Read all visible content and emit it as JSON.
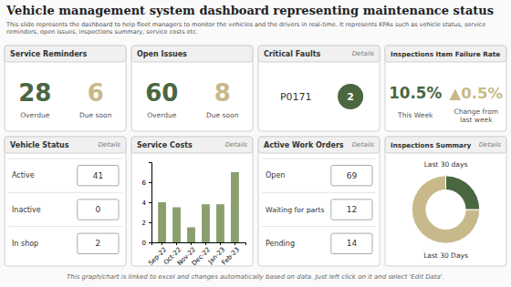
{
  "chart_data": [
    {
      "type": "dashboard",
      "title": "Vehicle management system dashboard representing maintenance status",
      "subtitle": "This slide represents the dashboard to help fleet managers to monitor the vehicles and the drivers in real-time. It represents KPAs such as vehicle status, service reminders, open issues, inspections summary, service costs etc.",
      "annotations": [
        "This graph/chart is linked to excel and changes automatically based on data. Just left click on it and select 'Edit Data'."
      ]
    },
    {
      "type": "kpi",
      "title": "Service Reminders",
      "categories": [
        "Overdue",
        "Due soon"
      ],
      "values": [
        28,
        6
      ],
      "colors": [
        "#4a6741",
        "#c8b98a"
      ]
    },
    {
      "type": "kpi",
      "title": "Open Issues",
      "categories": [
        "Overdue",
        "Due soon"
      ],
      "values": [
        60,
        8
      ],
      "colors": [
        "#4a6741",
        "#c8b98a"
      ]
    },
    {
      "type": "badge",
      "title": "Critical Faults",
      "categories": [
        "P0171"
      ],
      "values": [
        2
      ],
      "colors": [
        "#4a6741"
      ],
      "annotations": [
        "Details"
      ]
    },
    {
      "type": "kpi",
      "title": "Inspections Item Failure Rate",
      "categories": [
        "This Week",
        "Change from\nlast week"
      ],
      "values": [
        10.5,
        0.5
      ],
      "value_labels": [
        "10.5%",
        "▲0.5%"
      ],
      "colors": [
        "#4a6741",
        "#c8b98a"
      ]
    },
    {
      "type": "table",
      "title": "Vehicle Status",
      "categories": [
        "Active",
        "Inactive",
        "In shop"
      ],
      "values": [
        41,
        0,
        2
      ],
      "annotations": [
        "Details"
      ]
    },
    {
      "type": "bar",
      "title": "Service Costs",
      "categories": [
        "Sep-22",
        "Oct-22",
        "Nov-22",
        "Dec-22",
        "Jan-23",
        "Feb-23"
      ],
      "values": [
        4,
        3.5,
        1.5,
        3.8,
        3.8,
        7
      ],
      "color": "#8a9e6e",
      "ylim": [
        0,
        8
      ],
      "yticks": [
        0,
        2,
        4,
        6
      ],
      "grid": false,
      "annotations": [
        "Details"
      ]
    },
    {
      "type": "table",
      "title": "Active Work Orders",
      "categories": [
        "Open",
        "Waiting for parts",
        "Pending"
      ],
      "values": [
        69,
        12,
        14
      ],
      "annotations": [
        "Details"
      ]
    },
    {
      "type": "donut",
      "title": "Inspections Summary",
      "values": [
        75,
        25
      ],
      "colors": [
        "#c8b98a",
        "#4a6741"
      ],
      "annotations": [
        "Details",
        "Last 30 days",
        "Last 30 Days"
      ]
    }
  ]
}
